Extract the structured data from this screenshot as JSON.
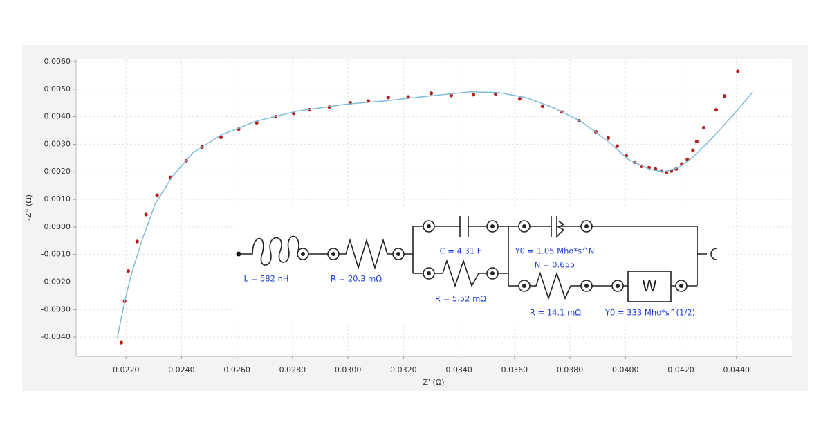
{
  "chart_data": {
    "type": "scatter",
    "x_label": "Z' (Ω)",
    "y_label": "-Z'' (Ω)",
    "xlim": [
      0.0202,
      0.046
    ],
    "ylim": [
      -0.0047,
      0.0061
    ],
    "grid": true,
    "xticks": [
      {
        "value": 0.022,
        "label": "0.0220"
      },
      {
        "value": 0.024,
        "label": "0.0240"
      },
      {
        "value": 0.026,
        "label": "0.0260"
      },
      {
        "value": 0.028,
        "label": "0.0280"
      },
      {
        "value": 0.03,
        "label": "0.0300"
      },
      {
        "value": 0.032,
        "label": "0.0320"
      },
      {
        "value": 0.034,
        "label": "0.0340"
      },
      {
        "value": 0.036,
        "label": "0.0360"
      },
      {
        "value": 0.038,
        "label": "0.0380"
      },
      {
        "value": 0.04,
        "label": "0.0400"
      },
      {
        "value": 0.042,
        "label": "0.0420"
      },
      {
        "value": 0.044,
        "label": "0.0440"
      }
    ],
    "yticks": [
      {
        "value": 0.006,
        "label": "0.0060"
      },
      {
        "value": 0.005,
        "label": "0.0050"
      },
      {
        "value": 0.004,
        "label": "0.0040"
      },
      {
        "value": 0.003,
        "label": "0.0030"
      },
      {
        "value": 0.002,
        "label": "0.0020"
      },
      {
        "value": 0.001,
        "label": "0.0010"
      },
      {
        "value": 0,
        "label": "0.0000"
      },
      {
        "value": -0.001,
        "label": "-0.0010"
      },
      {
        "value": -0.002,
        "label": "-0.0020"
      },
      {
        "value": -0.003,
        "label": "-0.0030"
      },
      {
        "value": -0.004,
        "label": "-0.0040"
      }
    ],
    "series": [
      {
        "mode": "markers",
        "color": "#b81d1d",
        "x": [
          0.02183,
          0.02195,
          0.02208,
          0.0224,
          0.02272,
          0.02312,
          0.0236,
          0.02417,
          0.02474,
          0.02542,
          0.02606,
          0.02671,
          0.02739,
          0.02804,
          0.02861,
          0.02933,
          0.03008,
          0.03073,
          0.03145,
          0.03217,
          0.033,
          0.03372,
          0.03452,
          0.03532,
          0.03619,
          0.03701,
          0.03771,
          0.03833,
          0.03893,
          0.03938,
          0.0397,
          0.04003,
          0.04033,
          0.04058,
          0.04085,
          0.04108,
          0.0413,
          0.04148,
          0.04165,
          0.04183,
          0.04203,
          0.04223,
          0.04243,
          0.04257,
          0.04282,
          0.04327,
          0.04357,
          0.04405
        ],
        "values": [
          -0.0042,
          -0.0027,
          -0.0016,
          -0.00053,
          0.00045,
          0.00115,
          0.0018,
          0.0024,
          0.0029,
          0.00325,
          0.00355,
          0.00378,
          0.004,
          0.00412,
          0.00425,
          0.00435,
          0.0045,
          0.00457,
          0.0047,
          0.00472,
          0.00485,
          0.00477,
          0.0048,
          0.00483,
          0.00465,
          0.00438,
          0.00417,
          0.00385,
          0.00345,
          0.00323,
          0.00293,
          0.00258,
          0.00235,
          0.0022,
          0.00215,
          0.0021,
          0.00203,
          0.00198,
          0.00203,
          0.0021,
          0.00228,
          0.00245,
          0.00278,
          0.0031,
          0.0036,
          0.00425,
          0.00475,
          0.00565
        ]
      },
      {
        "mode": "line",
        "color": "#7fbcd8",
        "x": [
          0.02168,
          0.02193,
          0.02217,
          0.02255,
          0.02305,
          0.02367,
          0.02442,
          0.02542,
          0.02666,
          0.02816,
          0.0299,
          0.0314,
          0.0329,
          0.0344,
          0.0354,
          0.0364,
          0.0374,
          0.0384,
          0.0394,
          0.0401,
          0.0409,
          0.0414,
          0.0419,
          0.0424,
          0.0431,
          0.0439,
          0.04457
        ],
        "values": [
          -0.00405,
          -0.0028,
          -0.0018,
          -0.00055,
          0.00083,
          0.00183,
          0.0027,
          0.00333,
          0.00383,
          0.0042,
          0.00445,
          0.00458,
          0.00475,
          0.0049,
          0.00488,
          0.0047,
          0.00433,
          0.00383,
          0.00308,
          0.00245,
          0.00208,
          0.002,
          0.00215,
          0.0025,
          0.0032,
          0.00408,
          0.00488
        ]
      }
    ],
    "circuit": {
      "labels": [
        "L = 582 nH",
        "R = 20.3 mΩ",
        "C = 4.31 F",
        "R = 5.52 mΩ",
        "Y0 = 1.05 Mho*s^N",
        "N = 0.655",
        "R = 14.1 mΩ",
        "Y0 = 333 Mho*s^(1/2)"
      ],
      "symbol": "W"
    }
  }
}
